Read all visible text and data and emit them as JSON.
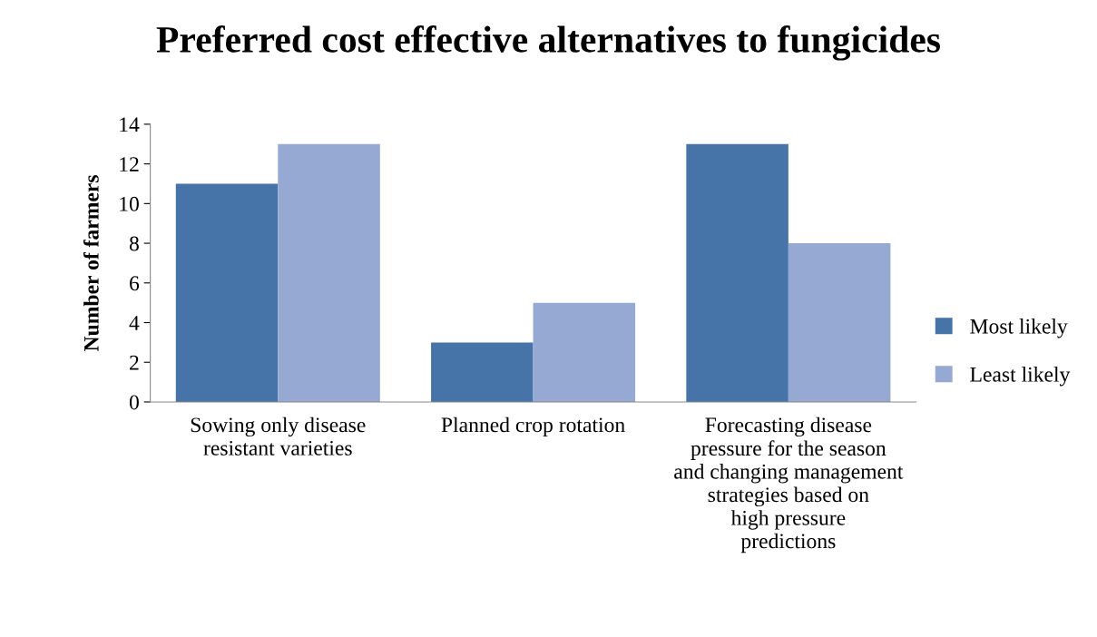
{
  "chart_data": {
    "type": "bar",
    "title": "Preferred cost effective alternatives to fungicides",
    "ylabel": "Number of farmers",
    "categories": [
      "Sowing only disease resistant varieties",
      "Planned crop rotation",
      "Forecasting disease pressure for the season and changing management strategies based on high pressure predictions"
    ],
    "series": [
      {
        "name": "Most likely",
        "color": "#4674a8",
        "values": [
          11,
          3,
          13
        ]
      },
      {
        "name": "Least likely",
        "color": "#95a9d2",
        "values": [
          13,
          5,
          8
        ]
      }
    ],
    "ylim": [
      0,
      14
    ],
    "yticks": [
      0,
      2,
      4,
      6,
      8,
      10,
      12,
      14
    ],
    "grid": false,
    "legend": "right"
  }
}
